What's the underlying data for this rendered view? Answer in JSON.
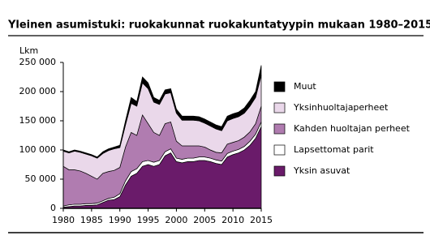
{
  "chart_data": {
    "type": "stacked-area",
    "title": "Yleinen asumistuki: ruokakunnat ruokakuntatyypin mukaan 1980–2015",
    "y_label": "Lkm",
    "x": [
      1980,
      1981,
      1982,
      1983,
      1984,
      1985,
      1986,
      1987,
      1988,
      1989,
      1990,
      1991,
      1992,
      1993,
      1994,
      1995,
      1996,
      1997,
      1998,
      1999,
      2000,
      2001,
      2002,
      2003,
      2004,
      2005,
      2006,
      2007,
      2008,
      2009,
      2010,
      2011,
      2012,
      2013,
      2014,
      2015
    ],
    "xlim": [
      1980,
      2015
    ],
    "xticks": [
      1980,
      1985,
      1990,
      1995,
      2000,
      2005,
      2010,
      2015
    ],
    "ylim": [
      0,
      250000
    ],
    "yticks": [
      0,
      {
        "value": 50000,
        "label": "50 000"
      },
      {
        "value": 100000,
        "label": "100 000"
      },
      {
        "value": 150000,
        "label": "150 000"
      },
      {
        "value": 200000,
        "label": "200 000"
      },
      {
        "value": 250000,
        "label": "250 000"
      }
    ],
    "series": [
      {
        "name": "Yksin asuvat",
        "color": "#6a1b6a",
        "values": [
          2000,
          3000,
          4000,
          4000,
          5000,
          5000,
          6000,
          10000,
          14000,
          15000,
          20000,
          40000,
          55000,
          60000,
          72000,
          75000,
          72000,
          75000,
          90000,
          95000,
          80000,
          78000,
          80000,
          80000,
          82000,
          82000,
          80000,
          77000,
          75000,
          88000,
          92000,
          95000,
          100000,
          108000,
          120000,
          140000
        ]
      },
      {
        "name": "Lapsettomat parit",
        "color": "#ffffff",
        "values": [
          2000,
          3000,
          3000,
          3000,
          3000,
          3000,
          3000,
          3000,
          3000,
          4000,
          5000,
          7000,
          8000,
          8000,
          8000,
          7000,
          7000,
          7000,
          7000,
          7000,
          6000,
          6000,
          6000,
          6000,
          6000,
          6000,
          6000,
          6000,
          6000,
          6000,
          6000,
          6000,
          6000,
          7000,
          7000,
          8000
        ]
      },
      {
        "name": "Kahden huoltajan perheet",
        "color": "#b07cb0",
        "values": [
          68000,
          60000,
          59000,
          57000,
          52000,
          47000,
          41000,
          47000,
          46000,
          46000,
          45000,
          58000,
          67000,
          57000,
          80000,
          63000,
          51000,
          43000,
          48000,
          46000,
          29000,
          23000,
          21000,
          21000,
          19000,
          17000,
          14000,
          13000,
          14000,
          16000,
          15000,
          15000,
          16000,
          16000,
          18000,
          27000
        ]
      },
      {
        "name": "Yksinhuoltajaperheet",
        "color": "#ead8ea",
        "values": [
          26000,
          29000,
          32000,
          32000,
          33000,
          35000,
          36000,
          34000,
          36000,
          37000,
          34000,
          38000,
          50000,
          50000,
          55000,
          60000,
          52000,
          53000,
          51000,
          50000,
          48000,
          44000,
          44000,
          44000,
          43000,
          41000,
          41000,
          40000,
          38000,
          40000,
          41000,
          41000,
          41000,
          44000,
          45000,
          53000
        ]
      },
      {
        "name": "Muut",
        "color": "#000000",
        "values": [
          2000,
          2000,
          2000,
          2000,
          2000,
          2000,
          2000,
          3000,
          3000,
          3000,
          4000,
          7000,
          10000,
          8000,
          10000,
          10000,
          8000,
          7000,
          7000,
          7000,
          7000,
          7000,
          7000,
          7000,
          7000,
          7000,
          7000,
          7000,
          7000,
          8000,
          8000,
          8000,
          9000,
          10000,
          10000,
          17000
        ]
      }
    ]
  }
}
